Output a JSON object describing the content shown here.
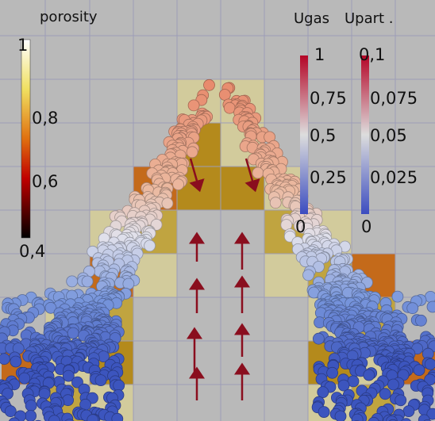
{
  "porosity_legend": {
    "title": "porosity",
    "ticks": [
      "1",
      "0,8",
      "0,6",
      "0,4"
    ]
  },
  "velocity_legend": {
    "ugas_title": "Ugas",
    "upart_title": "Upart .",
    "ugas_ticks": [
      "1",
      "0,75",
      "0,5",
      "0,25",
      "0"
    ],
    "upart_ticks": [
      "0,1",
      "0,075",
      "0,05",
      "0,025",
      "0"
    ]
  }
}
